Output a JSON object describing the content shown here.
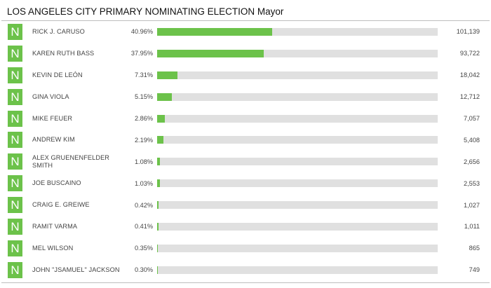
{
  "header": {
    "title": "LOS ANGELES CITY PRIMARY NOMINATING ELECTION Mayor"
  },
  "colors": {
    "accent": "#6cc24a",
    "track": "#e0e0e0"
  },
  "candidates": [
    {
      "badge": "N",
      "name": "RICK J. CARUSO",
      "percent": "40.96%",
      "share": 0.4096,
      "votes": "101,139"
    },
    {
      "badge": "N",
      "name": "KAREN RUTH BASS",
      "percent": "37.95%",
      "share": 0.3795,
      "votes": "93,722"
    },
    {
      "badge": "N",
      "name": "KEVIN DE LEÓN",
      "percent": "7.31%",
      "share": 0.0731,
      "votes": "18,042"
    },
    {
      "badge": "N",
      "name": "GINA VIOLA",
      "percent": "5.15%",
      "share": 0.0515,
      "votes": "12,712"
    },
    {
      "badge": "N",
      "name": "MIKE FEUER",
      "percent": "2.86%",
      "share": 0.0286,
      "votes": "7,057"
    },
    {
      "badge": "N",
      "name": "ANDREW KIM",
      "percent": "2.19%",
      "share": 0.0219,
      "votes": "5,408"
    },
    {
      "badge": "N",
      "name": "ALEX GRUENENFELDER SMITH",
      "percent": "1.08%",
      "share": 0.0108,
      "votes": "2,656"
    },
    {
      "badge": "N",
      "name": "JOE BUSCAINO",
      "percent": "1.03%",
      "share": 0.0103,
      "votes": "2,553"
    },
    {
      "badge": "N",
      "name": "CRAIG E. GREIWE",
      "percent": "0.42%",
      "share": 0.0042,
      "votes": "1,027"
    },
    {
      "badge": "N",
      "name": "RAMIT VARMA",
      "percent": "0.41%",
      "share": 0.0041,
      "votes": "1,011"
    },
    {
      "badge": "N",
      "name": "MEL WILSON",
      "percent": "0.35%",
      "share": 0.0035,
      "votes": "865"
    },
    {
      "badge": "N",
      "name": "JOHN \"JSAMUEL\" JACKSON",
      "percent": "0.30%",
      "share": 0.003,
      "votes": "749"
    }
  ]
}
